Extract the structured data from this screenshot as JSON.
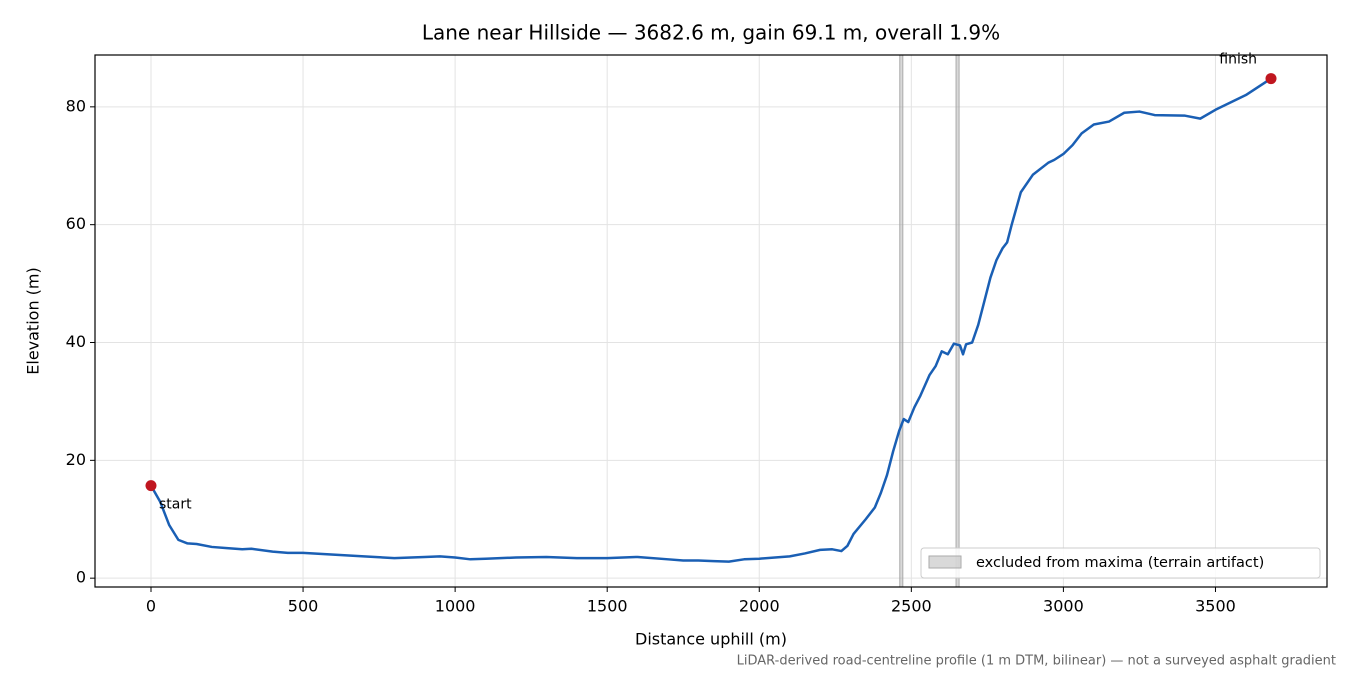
{
  "chart_data": {
    "type": "line",
    "title": "Lane near Hillside — 3682.6 m, gain 69.1 m, overall 1.9%",
    "xlabel": "Distance uphill (m)",
    "ylabel": "Elevation (m)",
    "caption": "LiDAR-derived road-centreline profile (1 m DTM, bilinear) — not a surveyed asphalt gradient",
    "color": "#1a5fb4",
    "x": [
      0,
      30,
      60,
      90,
      120,
      150,
      200,
      250,
      300,
      330,
      400,
      450,
      500,
      600,
      700,
      800,
      900,
      950,
      1000,
      1050,
      1100,
      1200,
      1300,
      1400,
      1500,
      1600,
      1700,
      1750,
      1800,
      1850,
      1900,
      1950,
      2000,
      2100,
      2150,
      2200,
      2240,
      2270,
      2290,
      2310,
      2350,
      2380,
      2400,
      2420,
      2440,
      2460,
      2475,
      2490,
      2510,
      2530,
      2560,
      2580,
      2600,
      2620,
      2640,
      2660,
      2670,
      2680,
      2700,
      2720,
      2740,
      2760,
      2780,
      2800,
      2815,
      2830,
      2860,
      2900,
      2950,
      2970,
      3000,
      3030,
      3060,
      3100,
      3150,
      3200,
      3250,
      3300,
      3400,
      3450,
      3500,
      3600,
      3682.6
    ],
    "values": [
      15.7,
      13,
      9,
      6.5,
      5.9,
      5.8,
      5.3,
      5.1,
      4.9,
      5.0,
      4.5,
      4.3,
      4.3,
      4.0,
      3.7,
      3.4,
      3.6,
      3.7,
      3.5,
      3.2,
      3.3,
      3.5,
      3.6,
      3.4,
      3.4,
      3.6,
      3.2,
      3.0,
      3.0,
      2.9,
      2.8,
      3.2,
      3.3,
      3.7,
      4.2,
      4.8,
      4.9,
      4.6,
      5.5,
      7.5,
      10,
      12,
      14.5,
      17.5,
      21.5,
      25,
      27,
      26.5,
      29,
      31,
      34.5,
      36,
      38.5,
      38,
      39.8,
      39.5,
      38,
      39.7,
      40,
      43,
      47,
      51,
      54,
      56,
      57,
      60,
      65.5,
      68.5,
      70.5,
      71,
      72,
      73.5,
      75.5,
      77,
      77.5,
      79,
      79.2,
      78.6,
      78.5,
      78,
      79.5,
      82,
      84.8
    ],
    "annotations": [
      {
        "text": "start",
        "x": 0,
        "y": 15.7,
        "color": "#c0161f"
      },
      {
        "text": "finish",
        "x": 3682.6,
        "y": 84.8,
        "color": "#c0161f"
      }
    ],
    "excluded": {
      "label": "excluded from maxima (terrain artifact)",
      "color": "#aaaaaa",
      "spans": [
        [
          2462,
          2472
        ],
        [
          2647,
          2657
        ]
      ]
    },
    "xlim": [
      -184.1,
      3866.7
    ],
    "ylim": [
      -1.5,
      88.8
    ],
    "xticks": [
      0,
      500,
      1000,
      1500,
      2000,
      2500,
      3000,
      3500
    ],
    "yticks": [
      0,
      20,
      40,
      60,
      80
    ],
    "grid": true,
    "legend": "lower right"
  }
}
